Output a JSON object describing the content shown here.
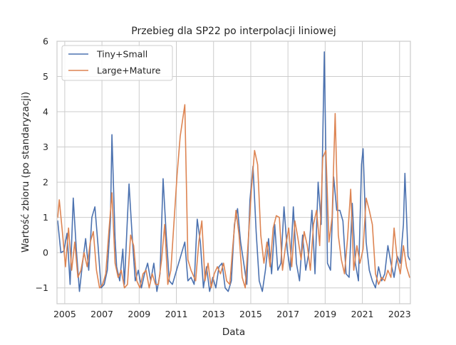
{
  "chart_data": {
    "type": "line",
    "title": "Przebieg dla SP22 po interpolacji liniowej",
    "xlabel": "Data",
    "ylabel": "Wartość zbioru (po standaryzacji)",
    "xlim": [
      "2004-08-01",
      "2023-07-31"
    ],
    "ylim": [
      -1.45,
      6.0
    ],
    "x_ticks": [
      {
        "date": "2005-01-01",
        "label": "2005"
      },
      {
        "date": "2007-01-01",
        "label": "2007"
      },
      {
        "date": "2009-01-01",
        "label": "2009"
      },
      {
        "date": "2011-01-01",
        "label": "2011"
      },
      {
        "date": "2013-01-01",
        "label": "2013"
      },
      {
        "date": "2015-01-01",
        "label": "2015"
      },
      {
        "date": "2017-01-01",
        "label": "2017"
      },
      {
        "date": "2019-01-01",
        "label": "2019"
      },
      {
        "date": "2021-01-01",
        "label": "2021"
      },
      {
        "date": "2023-01-01",
        "label": "2023"
      }
    ],
    "y_ticks": [
      {
        "value": -1,
        "label": "−1"
      },
      {
        "value": 0,
        "label": "0"
      },
      {
        "value": 1,
        "label": "1"
      },
      {
        "value": 2,
        "label": "2"
      },
      {
        "value": 3,
        "label": "3"
      },
      {
        "value": 4,
        "label": "4"
      },
      {
        "value": 5,
        "label": "5"
      },
      {
        "value": 6,
        "label": "6"
      }
    ],
    "grid": true,
    "legend_position": "top-left",
    "series": [
      {
        "name": "Tiny+Small",
        "color": "#4c72b0",
        "points": [
          [
            "2004-08",
            0.9
          ],
          [
            "2004-10",
            0.0
          ],
          [
            "2004-12",
            0.05
          ],
          [
            "2005-02",
            0.55
          ],
          [
            "2005-04",
            -0.9
          ],
          [
            "2005-06",
            1.55
          ],
          [
            "2005-08",
            0.1
          ],
          [
            "2005-10",
            -1.1
          ],
          [
            "2005-12",
            -0.3
          ],
          [
            "2006-02",
            0.4
          ],
          [
            "2006-04",
            -0.5
          ],
          [
            "2006-06",
            1.0
          ],
          [
            "2006-08",
            1.3
          ],
          [
            "2006-10",
            0.2
          ],
          [
            "2006-12",
            -1.0
          ],
          [
            "2007-02",
            -0.9
          ],
          [
            "2007-04",
            -0.5
          ],
          [
            "2007-06",
            0.9
          ],
          [
            "2007-07",
            3.35
          ],
          [
            "2007-09",
            0.4
          ],
          [
            "2007-10",
            -0.4
          ],
          [
            "2007-12",
            -0.8
          ],
          [
            "2008-02",
            0.1
          ],
          [
            "2008-03",
            -0.9
          ],
          [
            "2008-05",
            1.0
          ],
          [
            "2008-06",
            1.95
          ],
          [
            "2008-08",
            0.5
          ],
          [
            "2008-10",
            -0.8
          ],
          [
            "2008-12",
            -0.5
          ],
          [
            "2009-02",
            -1.0
          ],
          [
            "2009-04",
            -0.6
          ],
          [
            "2009-06",
            -0.3
          ],
          [
            "2009-08",
            -0.8
          ],
          [
            "2009-10",
            -0.3
          ],
          [
            "2009-12",
            -1.1
          ],
          [
            "2010-02",
            -0.6
          ],
          [
            "2010-04",
            2.1
          ],
          [
            "2010-06",
            0.5
          ],
          [
            "2010-08",
            -0.8
          ],
          [
            "2010-10",
            -0.9
          ],
          [
            "2011-06",
            0.3
          ],
          [
            "2011-08",
            -0.8
          ],
          [
            "2011-10",
            -0.7
          ],
          [
            "2011-12",
            -0.9
          ],
          [
            "2012-02",
            0.95
          ],
          [
            "2012-04",
            0.3
          ],
          [
            "2012-06",
            -1.0
          ],
          [
            "2012-08",
            -0.4
          ],
          [
            "2012-10",
            -1.1
          ],
          [
            "2012-12",
            -0.7
          ],
          [
            "2013-02",
            -1.0
          ],
          [
            "2013-04",
            -0.4
          ],
          [
            "2013-06",
            -0.3
          ],
          [
            "2013-08",
            -1.0
          ],
          [
            "2013-10",
            -1.1
          ],
          [
            "2013-12",
            -0.8
          ],
          [
            "2014-02",
            0.8
          ],
          [
            "2014-04",
            1.25
          ],
          [
            "2014-06",
            0.3
          ],
          [
            "2014-08",
            -0.3
          ],
          [
            "2014-10",
            -0.9
          ],
          [
            "2014-12",
            1.5
          ],
          [
            "2015-02",
            2.45
          ],
          [
            "2015-04",
            0.6
          ],
          [
            "2015-06",
            -0.8
          ],
          [
            "2015-08",
            -1.1
          ],
          [
            "2015-10",
            -0.5
          ],
          [
            "2015-12",
            0.4
          ],
          [
            "2016-02",
            -0.6
          ],
          [
            "2016-04",
            0.8
          ],
          [
            "2016-06",
            -0.5
          ],
          [
            "2016-08",
            -0.3
          ],
          [
            "2016-10",
            1.3
          ],
          [
            "2016-12",
            0.1
          ],
          [
            "2017-02",
            -0.5
          ],
          [
            "2017-04",
            1.3
          ],
          [
            "2017-06",
            -0.3
          ],
          [
            "2017-08",
            -0.8
          ],
          [
            "2017-10",
            0.5
          ],
          [
            "2017-12",
            -0.5
          ],
          [
            "2018-02",
            0.0
          ],
          [
            "2018-04",
            1.2
          ],
          [
            "2018-06",
            -0.6
          ],
          [
            "2018-08",
            2.0
          ],
          [
            "2018-10",
            0.8
          ],
          [
            "2018-12",
            5.7
          ],
          [
            "2019-02",
            -0.3
          ],
          [
            "2019-04",
            -0.5
          ],
          [
            "2019-06",
            2.15
          ],
          [
            "2019-08",
            1.2
          ],
          [
            "2019-10",
            1.2
          ],
          [
            "2019-12",
            0.9
          ],
          [
            "2020-02",
            -0.6
          ],
          [
            "2020-04",
            -0.7
          ],
          [
            "2020-06",
            1.4
          ],
          [
            "2020-08",
            -0.3
          ],
          [
            "2020-10",
            -0.8
          ],
          [
            "2020-12",
            2.5
          ],
          [
            "2021-01",
            2.95
          ],
          [
            "2021-03",
            0.3
          ],
          [
            "2021-05",
            -0.5
          ],
          [
            "2021-07",
            -0.8
          ],
          [
            "2021-09",
            -1.0
          ],
          [
            "2021-11",
            -0.4
          ],
          [
            "2022-01",
            -0.8
          ],
          [
            "2022-03",
            -0.6
          ],
          [
            "2022-05",
            0.2
          ],
          [
            "2022-07",
            -0.3
          ],
          [
            "2022-09",
            -0.7
          ],
          [
            "2022-11",
            -0.1
          ],
          [
            "2023-01",
            -0.3
          ],
          [
            "2023-03",
            0.8
          ],
          [
            "2023-04",
            2.25
          ],
          [
            "2023-06",
            -0.1
          ],
          [
            "2023-07",
            -0.2
          ]
        ]
      },
      {
        "name": "Large+Mature",
        "color": "#dd8452",
        "points": [
          [
            "2004-08",
            1.0
          ],
          [
            "2004-09",
            1.5
          ],
          [
            "2004-11",
            0.6
          ],
          [
            "2005-01",
            -0.4
          ],
          [
            "2005-03",
            0.7
          ],
          [
            "2005-05",
            -0.5
          ],
          [
            "2005-07",
            0.3
          ],
          [
            "2005-09",
            -0.7
          ],
          [
            "2005-11",
            -0.5
          ],
          [
            "2006-01",
            0.0
          ],
          [
            "2006-03",
            -0.4
          ],
          [
            "2006-05",
            0.3
          ],
          [
            "2006-07",
            0.6
          ],
          [
            "2006-09",
            -0.5
          ],
          [
            "2006-11",
            -1.0
          ],
          [
            "2007-01",
            -0.9
          ],
          [
            "2007-03",
            -0.6
          ],
          [
            "2007-05",
            0.6
          ],
          [
            "2007-07",
            1.7
          ],
          [
            "2007-09",
            -0.3
          ],
          [
            "2007-11",
            -0.7
          ],
          [
            "2008-01",
            -0.5
          ],
          [
            "2008-03",
            -1.0
          ],
          [
            "2008-05",
            -0.9
          ],
          [
            "2008-07",
            0.5
          ],
          [
            "2008-09",
            0.2
          ],
          [
            "2008-11",
            -0.8
          ],
          [
            "2009-01",
            -1.0
          ],
          [
            "2009-03",
            -0.6
          ],
          [
            "2009-05",
            -0.5
          ],
          [
            "2009-07",
            -1.0
          ],
          [
            "2009-09",
            -0.6
          ],
          [
            "2009-11",
            -0.9
          ],
          [
            "2010-01",
            -0.9
          ],
          [
            "2010-03",
            -0.2
          ],
          [
            "2010-05",
            0.8
          ],
          [
            "2010-07",
            -0.9
          ],
          [
            "2010-09",
            -0.5
          ],
          [
            "2011-01",
            2.2
          ],
          [
            "2011-03",
            3.3
          ],
          [
            "2011-06",
            4.2
          ],
          [
            "2011-08",
            -0.2
          ],
          [
            "2011-10",
            -0.5
          ],
          [
            "2012-01",
            -0.8
          ],
          [
            "2012-03",
            0.3
          ],
          [
            "2012-05",
            0.9
          ],
          [
            "2012-07",
            -0.8
          ],
          [
            "2012-09",
            -0.3
          ],
          [
            "2012-11",
            -1.0
          ],
          [
            "2013-01",
            -0.6
          ],
          [
            "2013-03",
            -0.4
          ],
          [
            "2013-05",
            -0.6
          ],
          [
            "2013-07",
            -0.3
          ],
          [
            "2013-09",
            -0.8
          ],
          [
            "2013-11",
            -0.9
          ],
          [
            "2014-01",
            0.2
          ],
          [
            "2014-03",
            1.2
          ],
          [
            "2014-05",
            0.5
          ],
          [
            "2014-07",
            -0.7
          ],
          [
            "2014-09",
            -1.0
          ],
          [
            "2014-11",
            0.4
          ],
          [
            "2015-01",
            1.8
          ],
          [
            "2015-03",
            2.9
          ],
          [
            "2015-05",
            2.5
          ],
          [
            "2015-07",
            0.5
          ],
          [
            "2015-09",
            -0.3
          ],
          [
            "2015-11",
            0.3
          ],
          [
            "2016-01",
            -0.4
          ],
          [
            "2016-03",
            0.7
          ],
          [
            "2016-05",
            1.05
          ],
          [
            "2016-07",
            1.0
          ],
          [
            "2016-09",
            -0.5
          ],
          [
            "2016-11",
            0.2
          ],
          [
            "2017-01",
            0.7
          ],
          [
            "2017-03",
            -0.4
          ],
          [
            "2017-05",
            0.9
          ],
          [
            "2017-07",
            0.4
          ],
          [
            "2017-09",
            -0.2
          ],
          [
            "2017-11",
            0.6
          ],
          [
            "2018-01",
            0.2
          ],
          [
            "2018-03",
            -0.5
          ],
          [
            "2018-05",
            0.8
          ],
          [
            "2018-07",
            1.2
          ],
          [
            "2018-09",
            0.2
          ],
          [
            "2018-11",
            2.7
          ],
          [
            "2019-01",
            2.9
          ],
          [
            "2019-03",
            0.3
          ],
          [
            "2019-05",
            1.0
          ],
          [
            "2019-07",
            3.95
          ],
          [
            "2019-09",
            0.5
          ],
          [
            "2019-11",
            -0.2
          ],
          [
            "2020-01",
            -0.6
          ],
          [
            "2020-03",
            0.4
          ],
          [
            "2020-05",
            1.8
          ],
          [
            "2020-07",
            -0.5
          ],
          [
            "2020-09",
            0.2
          ],
          [
            "2020-11",
            -0.3
          ],
          [
            "2021-01",
            0.1
          ],
          [
            "2021-03",
            1.55
          ],
          [
            "2021-05",
            1.2
          ],
          [
            "2021-07",
            0.8
          ],
          [
            "2021-09",
            -0.6
          ],
          [
            "2021-11",
            -0.9
          ],
          [
            "2022-01",
            -0.7
          ],
          [
            "2022-03",
            -0.8
          ],
          [
            "2022-05",
            -0.5
          ],
          [
            "2022-07",
            -0.7
          ],
          [
            "2022-09",
            0.7
          ],
          [
            "2022-11",
            -0.2
          ],
          [
            "2023-01",
            -0.6
          ],
          [
            "2023-03",
            0.2
          ],
          [
            "2023-05",
            -0.4
          ],
          [
            "2023-07",
            -0.7
          ]
        ]
      }
    ]
  }
}
